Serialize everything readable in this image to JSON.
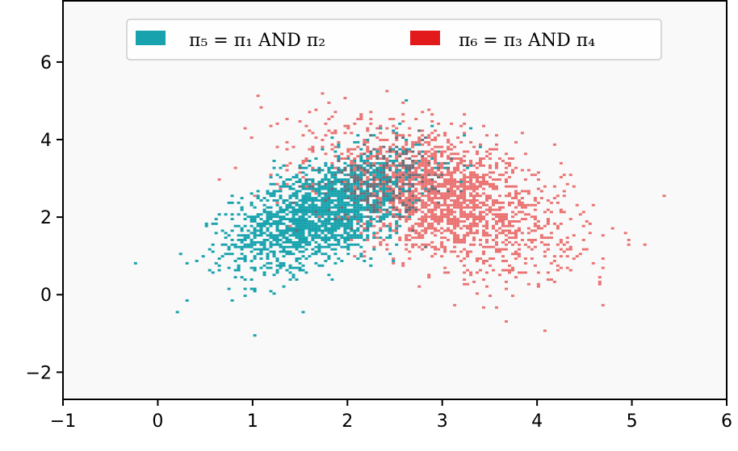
{
  "chart_data": {
    "type": "heatmap",
    "subtype": "2d-histogram-overlay",
    "xlim": [
      -1,
      6
    ],
    "ylim": [
      -2.7,
      7.6
    ],
    "xticks": [
      -1,
      0,
      1,
      2,
      3,
      4,
      5,
      6
    ],
    "yticks": [
      -2,
      0,
      2,
      4,
      6
    ],
    "xtick_labels": [
      "−1",
      "0",
      "1",
      "2",
      "3",
      "4",
      "5",
      "6"
    ],
    "ytick_labels": [
      "−2",
      "0",
      "2",
      "4",
      "6"
    ],
    "grid": false,
    "background": "#f9f9f9",
    "legend_position": "top-center",
    "series": [
      {
        "name": "π₅ = π₁ AND π₂",
        "color": "#17a2ad",
        "center": [
          1.8,
          2.2
        ],
        "std": [
          0.5,
          0.75
        ],
        "corr": 0.55,
        "points": 2000
      },
      {
        "name": "π₆ = π₃ AND π₄",
        "color": "#e31a1c",
        "render_color": "#ea7372",
        "center": [
          3.0,
          2.5
        ],
        "std": [
          0.65,
          0.9
        ],
        "corr": -0.5,
        "points": 2000
      }
    ],
    "overlap_color": "#6a6b75"
  }
}
